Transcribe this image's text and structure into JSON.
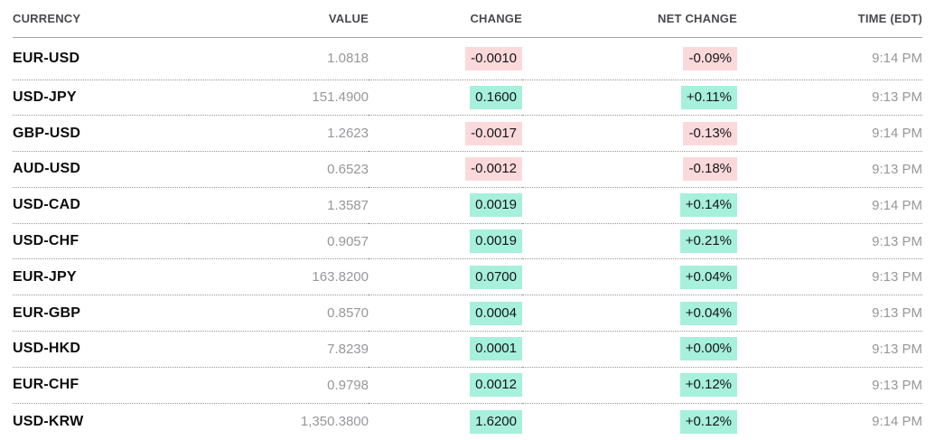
{
  "colors": {
    "positive_bg": "#a6f0dc",
    "negative_bg": "#fbd9db"
  },
  "table": {
    "columns": {
      "currency": "CURRENCY",
      "value": "VALUE",
      "change": "CHANGE",
      "net_change": "NET CHANGE",
      "time": "TIME (EDT)"
    },
    "rows": [
      {
        "currency": "EUR-USD",
        "value": "1.0818",
        "change": "-0.0010",
        "net_change": "-0.09%",
        "time": "9:14 PM",
        "direction": "neg"
      },
      {
        "currency": "USD-JPY",
        "value": "151.4900",
        "change": "0.1600",
        "net_change": "+0.11%",
        "time": "9:13 PM",
        "direction": "pos"
      },
      {
        "currency": "GBP-USD",
        "value": "1.2623",
        "change": "-0.0017",
        "net_change": "-0.13%",
        "time": "9:14 PM",
        "direction": "neg"
      },
      {
        "currency": "AUD-USD",
        "value": "0.6523",
        "change": "-0.0012",
        "net_change": "-0.18%",
        "time": "9:13 PM",
        "direction": "neg"
      },
      {
        "currency": "USD-CAD",
        "value": "1.3587",
        "change": "0.0019",
        "net_change": "+0.14%",
        "time": "9:14 PM",
        "direction": "pos"
      },
      {
        "currency": "USD-CHF",
        "value": "0.9057",
        "change": "0.0019",
        "net_change": "+0.21%",
        "time": "9:13 PM",
        "direction": "pos"
      },
      {
        "currency": "EUR-JPY",
        "value": "163.8200",
        "change": "0.0700",
        "net_change": "+0.04%",
        "time": "9:13 PM",
        "direction": "pos"
      },
      {
        "currency": "EUR-GBP",
        "value": "0.8570",
        "change": "0.0004",
        "net_change": "+0.04%",
        "time": "9:13 PM",
        "direction": "pos"
      },
      {
        "currency": "USD-HKD",
        "value": "7.8239",
        "change": "0.0001",
        "net_change": "+0.00%",
        "time": "9:13 PM",
        "direction": "pos"
      },
      {
        "currency": "EUR-CHF",
        "value": "0.9798",
        "change": "0.0012",
        "net_change": "+0.12%",
        "time": "9:13 PM",
        "direction": "pos"
      },
      {
        "currency": "USD-KRW",
        "value": "1,350.3800",
        "change": "1.6200",
        "net_change": "+0.12%",
        "time": "9:14 PM",
        "direction": "pos"
      }
    ]
  }
}
